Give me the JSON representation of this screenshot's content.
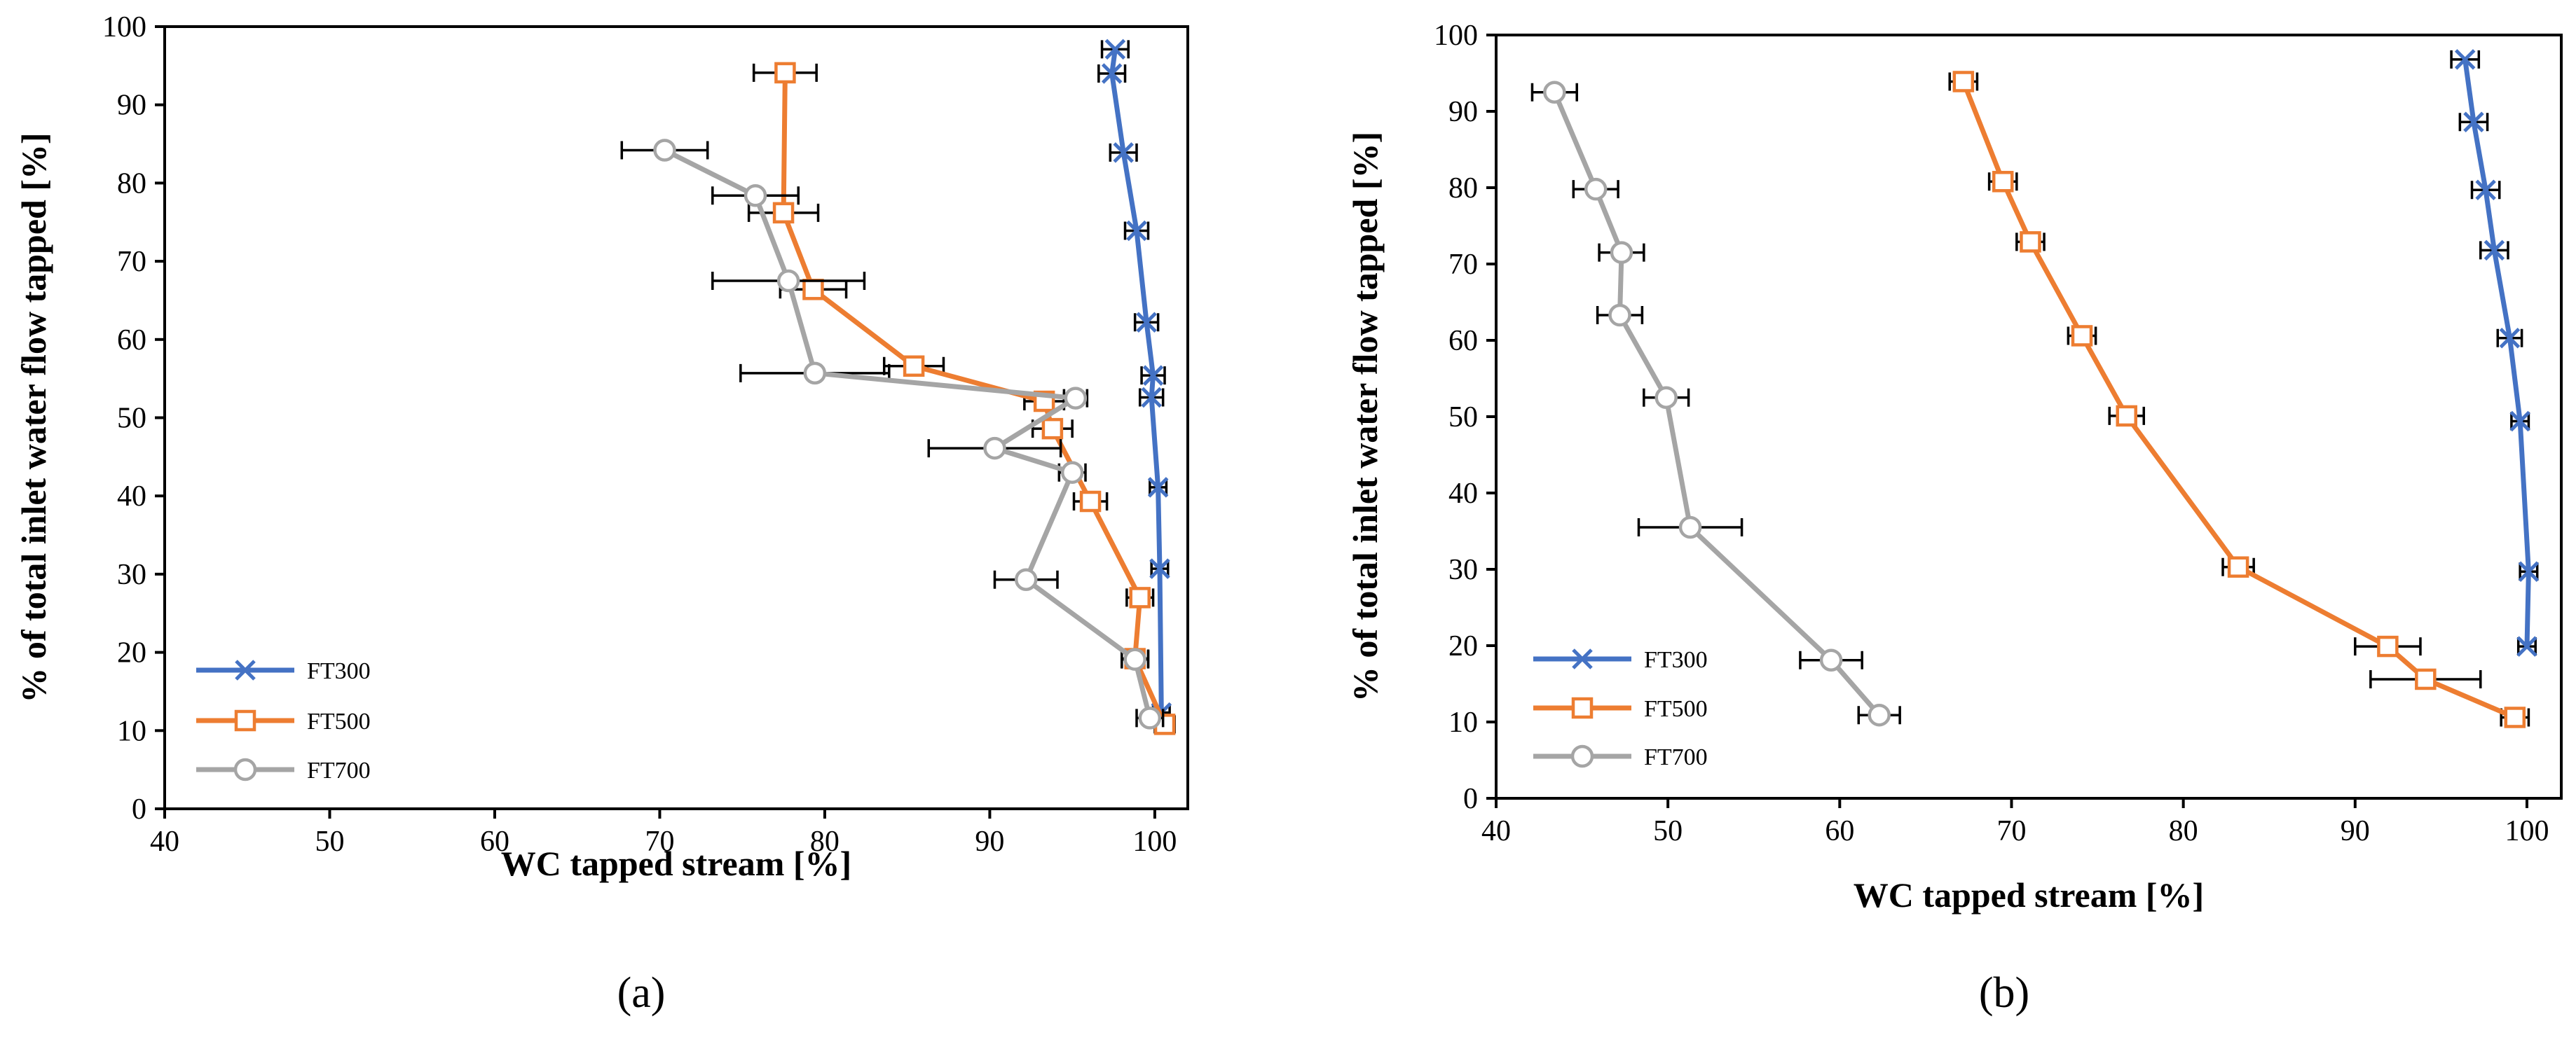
{
  "chart_data": [
    {
      "panel_label": "(a)",
      "type": "line",
      "xlabel": "WC tapped stream [%]",
      "ylabel": "% of total inlet water flow tapped [%]",
      "xlim": [
        40,
        102
      ],
      "ylim": [
        0,
        100
      ],
      "xticks": [
        40,
        50,
        60,
        70,
        80,
        90,
        100
      ],
      "yticks": [
        0,
        10,
        20,
        30,
        40,
        50,
        60,
        70,
        80,
        90,
        100
      ],
      "legend_position": "bottom-left",
      "series": [
        {
          "name": "FT300",
          "color": "#4472C4",
          "marker": "x",
          "points": [
            {
              "x": 97.6,
              "y": 97.1,
              "err": 0.8
            },
            {
              "x": 97.4,
              "y": 94.0,
              "err": 0.8
            },
            {
              "x": 98.1,
              "y": 83.9,
              "err": 0.8
            },
            {
              "x": 98.9,
              "y": 73.9,
              "err": 0.7
            },
            {
              "x": 99.5,
              "y": 62.2,
              "err": 0.7
            },
            {
              "x": 99.9,
              "y": 55.4,
              "err": 0.7
            },
            {
              "x": 99.8,
              "y": 52.6,
              "err": 0.7
            },
            {
              "x": 100.2,
              "y": 41.1,
              "err": 0.5
            },
            {
              "x": 100.3,
              "y": 30.7,
              "err": 0.5
            },
            {
              "x": 100.4,
              "y": 12.3,
              "err": 0.5
            }
          ]
        },
        {
          "name": "FT500",
          "color": "#ED7D31",
          "marker": "square",
          "points": [
            {
              "x": 77.6,
              "y": 94.1,
              "err": 1.9
            },
            {
              "x": 77.5,
              "y": 76.2,
              "err": 2.1
            },
            {
              "x": 79.3,
              "y": 66.4,
              "err": 2.0
            },
            {
              "x": 85.4,
              "y": 56.6,
              "err": 1.8
            },
            {
              "x": 93.3,
              "y": 52.1,
              "err": 1.2
            },
            {
              "x": 93.8,
              "y": 48.6,
              "err": 1.2
            },
            {
              "x": 96.1,
              "y": 39.3,
              "err": 1.0
            },
            {
              "x": 99.1,
              "y": 27.0,
              "err": 0.8
            },
            {
              "x": 98.8,
              "y": 19.2,
              "err": 0.8
            },
            {
              "x": 100.6,
              "y": 10.8,
              "err": 0.6
            }
          ]
        },
        {
          "name": "FT700",
          "color": "#A5A5A5",
          "marker": "circle",
          "points": [
            {
              "x": 70.3,
              "y": 84.2,
              "err": 2.6
            },
            {
              "x": 75.8,
              "y": 78.4,
              "err": 2.6
            },
            {
              "x": 77.8,
              "y": 67.5,
              "err": 4.6
            },
            {
              "x": 79.4,
              "y": 55.7,
              "err": 4.5
            },
            {
              "x": 95.2,
              "y": 52.5,
              "err": 0.7
            },
            {
              "x": 90.3,
              "y": 46.1,
              "err": 4.0
            },
            {
              "x": 95.0,
              "y": 43.0,
              "err": 0.8
            },
            {
              "x": 92.2,
              "y": 29.3,
              "err": 1.9
            },
            {
              "x": 98.8,
              "y": 19.1,
              "err": 0.8
            },
            {
              "x": 99.7,
              "y": 11.6,
              "err": 0.8
            }
          ]
        }
      ]
    },
    {
      "panel_label": "(b)",
      "type": "line",
      "xlabel": "WC tapped stream [%]",
      "ylabel": "% of total inlet water flow tapped [%]",
      "xlim": [
        40,
        102
      ],
      "ylim": [
        0,
        100
      ],
      "xticks": [
        40,
        50,
        60,
        70,
        80,
        90,
        100
      ],
      "yticks": [
        0,
        10,
        20,
        30,
        40,
        50,
        60,
        70,
        80,
        90,
        100
      ],
      "legend_position": "bottom-left",
      "series": [
        {
          "name": "FT300",
          "color": "#4472C4",
          "marker": "x",
          "points": [
            {
              "x": 96.4,
              "y": 96.8,
              "err": 0.8
            },
            {
              "x": 96.9,
              "y": 88.6,
              "err": 0.8
            },
            {
              "x": 97.6,
              "y": 79.7,
              "err": 0.8
            },
            {
              "x": 98.1,
              "y": 71.8,
              "err": 0.8
            },
            {
              "x": 99.0,
              "y": 60.3,
              "err": 0.7
            },
            {
              "x": 99.6,
              "y": 49.4,
              "err": 0.5
            },
            {
              "x": 100.1,
              "y": 29.7,
              "err": 0.5
            },
            {
              "x": 100.0,
              "y": 19.9,
              "err": 0.5
            }
          ]
        },
        {
          "name": "FT500",
          "color": "#ED7D31",
          "marker": "square",
          "points": [
            {
              "x": 67.2,
              "y": 93.9,
              "err": 0.8
            },
            {
              "x": 69.5,
              "y": 80.8,
              "err": 0.8
            },
            {
              "x": 71.1,
              "y": 72.9,
              "err": 0.8
            },
            {
              "x": 74.1,
              "y": 60.6,
              "err": 0.8
            },
            {
              "x": 76.7,
              "y": 50.1,
              "err": 1.0
            },
            {
              "x": 83.2,
              "y": 30.3,
              "err": 0.9
            },
            {
              "x": 91.9,
              "y": 19.9,
              "err": 1.9
            },
            {
              "x": 94.1,
              "y": 15.6,
              "err": 3.2
            },
            {
              "x": 99.3,
              "y": 10.6,
              "err": 0.8
            }
          ]
        },
        {
          "name": "FT700",
          "color": "#A5A5A5",
          "marker": "circle",
          "points": [
            {
              "x": 43.4,
              "y": 92.5,
              "err": 1.3
            },
            {
              "x": 45.8,
              "y": 79.8,
              "err": 1.3
            },
            {
              "x": 47.3,
              "y": 71.5,
              "err": 1.3
            },
            {
              "x": 47.2,
              "y": 63.3,
              "err": 1.3
            },
            {
              "x": 49.9,
              "y": 52.5,
              "err": 1.3
            },
            {
              "x": 51.3,
              "y": 35.5,
              "err": 3.0
            },
            {
              "x": 59.5,
              "y": 18.1,
              "err": 1.8
            },
            {
              "x": 62.3,
              "y": 10.9,
              "err": 1.2
            }
          ]
        }
      ]
    }
  ]
}
